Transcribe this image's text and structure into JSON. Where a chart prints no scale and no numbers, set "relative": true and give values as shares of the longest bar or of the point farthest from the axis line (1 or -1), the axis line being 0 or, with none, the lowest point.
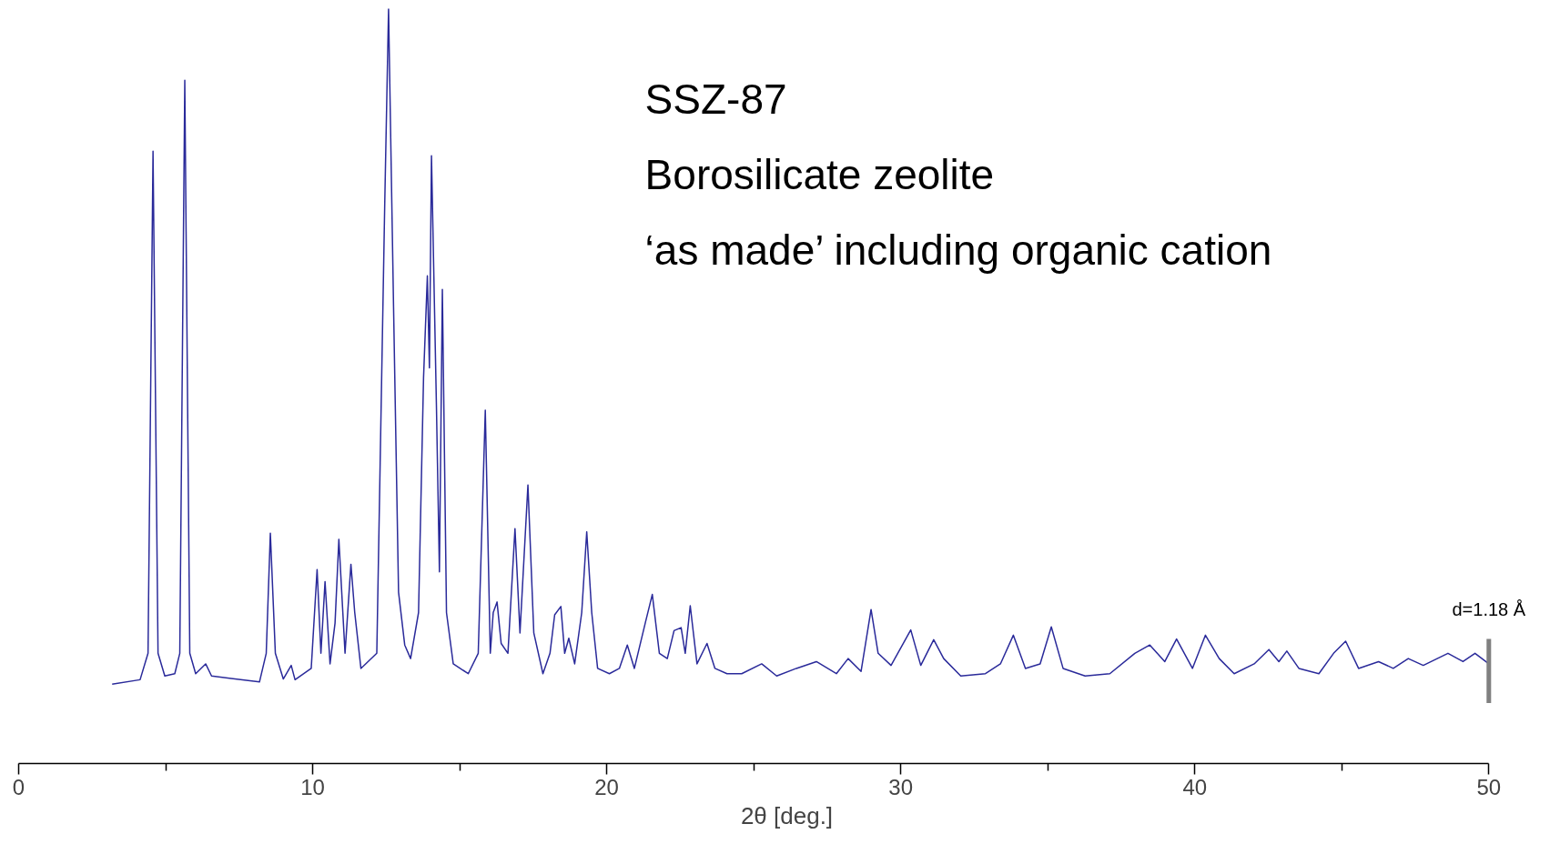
{
  "chart_data": {
    "type": "line",
    "relative": true,
    "title": "SSZ-87",
    "annotations": [
      "Borosilicate zeolite",
      "‘as made’ including organic cation",
      "d=1.18 Å"
    ],
    "xlabel": "2θ [deg.]",
    "xlim": [
      0,
      50
    ],
    "xticks": [
      0,
      {
        "value": 5,
        "label": null
      },
      10,
      {
        "value": 15,
        "label": null
      },
      20,
      {
        "value": 25,
        "label": null
      },
      30,
      {
        "value": 35,
        "label": null
      },
      40,
      {
        "value": 45,
        "label": null
      },
      50
    ],
    "tick_labels": "x",
    "grid": false,
    "marker": "none",
    "line_style": "solid",
    "ref_lines": [
      {
        "axis": "x",
        "value": 50,
        "color": "#808080"
      }
    ],
    "series": [
      {
        "color": "#2a2a9a",
        "x": [
          3.18,
          4.13,
          4.4,
          4.57,
          4.74,
          4.97,
          5.31,
          5.48,
          5.65,
          5.82,
          6.02,
          6.36,
          6.56,
          8.19,
          8.42,
          8.56,
          8.73,
          9.0,
          9.27,
          9.4,
          9.95,
          10.15,
          10.28,
          10.42,
          10.59,
          10.76,
          10.89,
          11.1,
          11.3,
          11.43,
          11.64,
          12.18,
          12.45,
          12.58,
          12.75,
          12.92,
          13.13,
          13.33,
          13.6,
          13.77,
          13.9,
          13.97,
          14.04,
          14.21,
          14.31,
          14.41,
          14.55,
          14.78,
          15.29,
          15.63,
          15.87,
          16.04,
          16.14,
          16.27,
          16.41,
          16.64,
          16.88,
          17.05,
          17.32,
          17.52,
          17.83,
          18.07,
          18.23,
          18.44,
          18.57,
          18.71,
          18.91,
          19.15,
          19.32,
          19.49,
          19.69,
          20.09,
          20.43,
          20.7,
          20.94,
          21.31,
          21.55,
          21.79,
          22.06,
          22.29,
          22.53,
          22.67,
          22.84,
          23.07,
          23.41,
          23.68,
          24.09,
          24.59,
          25.27,
          25.78,
          26.45,
          27.13,
          27.81,
          28.21,
          28.65,
          28.99,
          29.23,
          29.67,
          30.34,
          30.68,
          31.12,
          31.46,
          32.04,
          32.88,
          33.39,
          33.83,
          34.24,
          34.74,
          35.12,
          35.52,
          36.27,
          37.11,
          37.96,
          38.47,
          38.98,
          39.38,
          39.92,
          40.36,
          40.83,
          41.34,
          42.02,
          42.52,
          42.86,
          43.13,
          43.54,
          44.22,
          44.72,
          45.13,
          45.57,
          46.25,
          46.75,
          47.26,
          47.77,
          48.61,
          49.12,
          49.53,
          50.0
        ],
        "values": [
          0.105,
          0.111,
          0.146,
          0.811,
          0.146,
          0.116,
          0.119,
          0.146,
          0.905,
          0.146,
          0.119,
          0.132,
          0.116,
          0.108,
          0.146,
          0.305,
          0.146,
          0.112,
          0.13,
          0.111,
          0.126,
          0.257,
          0.146,
          0.241,
          0.132,
          0.186,
          0.297,
          0.146,
          0.264,
          0.2,
          0.126,
          0.146,
          0.741,
          1.0,
          0.605,
          0.227,
          0.157,
          0.139,
          0.2,
          0.511,
          0.646,
          0.524,
          0.805,
          0.47,
          0.254,
          0.628,
          0.2,
          0.132,
          0.119,
          0.146,
          0.468,
          0.146,
          0.2,
          0.214,
          0.159,
          0.146,
          0.311,
          0.173,
          0.369,
          0.173,
          0.119,
          0.146,
          0.197,
          0.208,
          0.146,
          0.166,
          0.132,
          0.2,
          0.307,
          0.2,
          0.126,
          0.119,
          0.126,
          0.157,
          0.126,
          0.186,
          0.224,
          0.146,
          0.139,
          0.176,
          0.18,
          0.146,
          0.209,
          0.132,
          0.159,
          0.126,
          0.119,
          0.119,
          0.132,
          0.116,
          0.126,
          0.135,
          0.119,
          0.139,
          0.122,
          0.204,
          0.146,
          0.13,
          0.177,
          0.13,
          0.164,
          0.139,
          0.116,
          0.119,
          0.132,
          0.17,
          0.126,
          0.132,
          0.181,
          0.126,
          0.116,
          0.119,
          0.146,
          0.157,
          0.135,
          0.165,
          0.126,
          0.17,
          0.139,
          0.119,
          0.132,
          0.151,
          0.135,
          0.149,
          0.126,
          0.119,
          0.146,
          0.162,
          0.126,
          0.135,
          0.126,
          0.139,
          0.13,
          0.146,
          0.135,
          0.146,
          0.132
        ]
      }
    ]
  }
}
